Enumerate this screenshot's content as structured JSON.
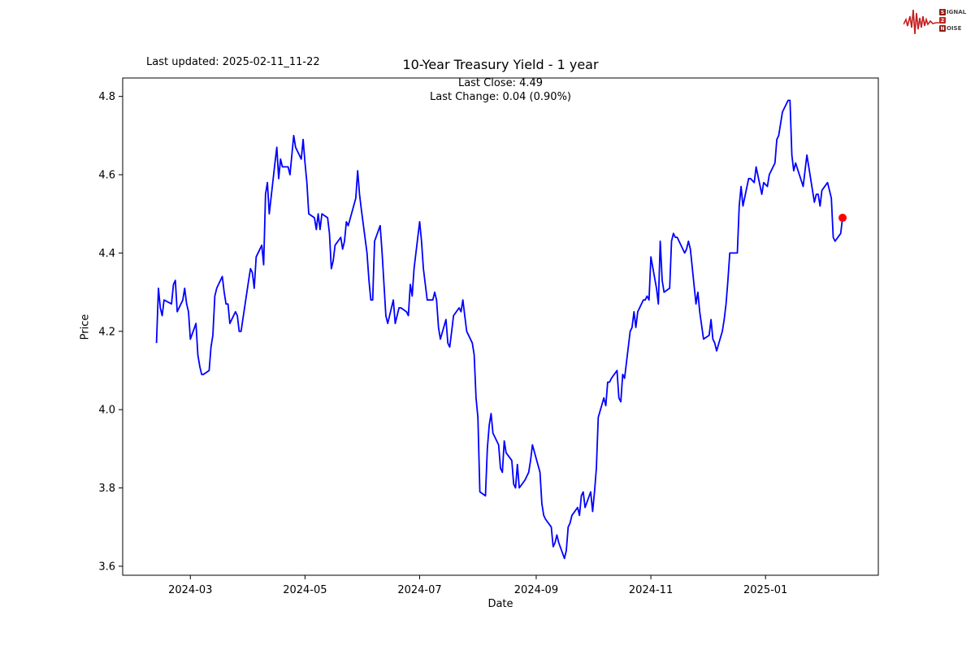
{
  "header": {
    "last_updated": "Last updated: 2025-02-11_11-22"
  },
  "logo": {
    "alt": "Signal 2 Noise",
    "line1_badge": "S",
    "line1_rest": "IGNAL",
    "line2_badge": "2",
    "line2_rest": "",
    "line3_badge": "N",
    "line3_rest": "OISE",
    "wave_color": "#c41e1e"
  },
  "chart_data": {
    "type": "line",
    "title": "10-Year Treasury Yield - 1 year",
    "subtitle_lines": [
      "Last Close: 4.49",
      "Last Change: 0.04 (0.90%)"
    ],
    "xlabel": "Date",
    "ylabel": "Price",
    "x_range": [
      "2024-01-25",
      "2025-03-02"
    ],
    "y_range": [
      3.577,
      4.847
    ],
    "x_ticks": [
      {
        "label": "2024-03",
        "date": "2024-03-01"
      },
      {
        "label": "2024-05",
        "date": "2024-05-01"
      },
      {
        "label": "2024-07",
        "date": "2024-07-01"
      },
      {
        "label": "2024-09",
        "date": "2024-09-01"
      },
      {
        "label": "2024-11",
        "date": "2024-11-01"
      },
      {
        "label": "2025-01",
        "date": "2025-01-01"
      }
    ],
    "y_ticks": [
      3.6,
      3.8,
      4.0,
      4.2,
      4.4,
      4.6,
      4.8
    ],
    "line_color": "#0000ff",
    "last_point_color": "#ff0000",
    "frame_color": "#000000",
    "legend": "none",
    "grid": false,
    "series": [
      {
        "name": "10-Year Treasury Yield",
        "points": [
          [
            "2024-02-12",
            4.17
          ],
          [
            "2024-02-13",
            4.31
          ],
          [
            "2024-02-14",
            4.26
          ],
          [
            "2024-02-15",
            4.24
          ],
          [
            "2024-02-16",
            4.28
          ],
          [
            "2024-02-20",
            4.27
          ],
          [
            "2024-02-21",
            4.32
          ],
          [
            "2024-02-22",
            4.33
          ],
          [
            "2024-02-23",
            4.25
          ],
          [
            "2024-02-26",
            4.28
          ],
          [
            "2024-02-27",
            4.31
          ],
          [
            "2024-02-28",
            4.27
          ],
          [
            "2024-02-29",
            4.25
          ],
          [
            "2024-03-01",
            4.18
          ],
          [
            "2024-03-04",
            4.22
          ],
          [
            "2024-03-05",
            4.14
          ],
          [
            "2024-03-06",
            4.11
          ],
          [
            "2024-03-07",
            4.09
          ],
          [
            "2024-03-08",
            4.09
          ],
          [
            "2024-03-11",
            4.1
          ],
          [
            "2024-03-12",
            4.16
          ],
          [
            "2024-03-13",
            4.19
          ],
          [
            "2024-03-14",
            4.29
          ],
          [
            "2024-03-15",
            4.31
          ],
          [
            "2024-03-18",
            4.34
          ],
          [
            "2024-03-19",
            4.3
          ],
          [
            "2024-03-20",
            4.27
          ],
          [
            "2024-03-21",
            4.27
          ],
          [
            "2024-03-22",
            4.22
          ],
          [
            "2024-03-25",
            4.25
          ],
          [
            "2024-03-26",
            4.24
          ],
          [
            "2024-03-27",
            4.2
          ],
          [
            "2024-03-28",
            4.2
          ],
          [
            "2024-04-01",
            4.33
          ],
          [
            "2024-04-02",
            4.36
          ],
          [
            "2024-04-03",
            4.35
          ],
          [
            "2024-04-04",
            4.31
          ],
          [
            "2024-04-05",
            4.39
          ],
          [
            "2024-04-08",
            4.42
          ],
          [
            "2024-04-09",
            4.37
          ],
          [
            "2024-04-10",
            4.55
          ],
          [
            "2024-04-11",
            4.58
          ],
          [
            "2024-04-12",
            4.5
          ],
          [
            "2024-04-15",
            4.63
          ],
          [
            "2024-04-16",
            4.67
          ],
          [
            "2024-04-17",
            4.59
          ],
          [
            "2024-04-18",
            4.64
          ],
          [
            "2024-04-19",
            4.62
          ],
          [
            "2024-04-22",
            4.62
          ],
          [
            "2024-04-23",
            4.6
          ],
          [
            "2024-04-24",
            4.65
          ],
          [
            "2024-04-25",
            4.7
          ],
          [
            "2024-04-26",
            4.67
          ],
          [
            "2024-04-29",
            4.64
          ],
          [
            "2024-04-30",
            4.69
          ],
          [
            "2024-05-01",
            4.63
          ],
          [
            "2024-05-02",
            4.58
          ],
          [
            "2024-05-03",
            4.5
          ],
          [
            "2024-05-06",
            4.49
          ],
          [
            "2024-05-07",
            4.46
          ],
          [
            "2024-05-08",
            4.5
          ],
          [
            "2024-05-09",
            4.46
          ],
          [
            "2024-05-10",
            4.5
          ],
          [
            "2024-05-13",
            4.49
          ],
          [
            "2024-05-14",
            4.45
          ],
          [
            "2024-05-15",
            4.36
          ],
          [
            "2024-05-16",
            4.38
          ],
          [
            "2024-05-17",
            4.42
          ],
          [
            "2024-05-20",
            4.44
          ],
          [
            "2024-05-21",
            4.41
          ],
          [
            "2024-05-22",
            4.43
          ],
          [
            "2024-05-23",
            4.48
          ],
          [
            "2024-05-24",
            4.47
          ],
          [
            "2024-05-28",
            4.54
          ],
          [
            "2024-05-29",
            4.61
          ],
          [
            "2024-05-30",
            4.55
          ],
          [
            "2024-05-31",
            4.51
          ],
          [
            "2024-06-03",
            4.4
          ],
          [
            "2024-06-04",
            4.33
          ],
          [
            "2024-06-05",
            4.28
          ],
          [
            "2024-06-06",
            4.28
          ],
          [
            "2024-06-07",
            4.43
          ],
          [
            "2024-06-10",
            4.47
          ],
          [
            "2024-06-11",
            4.4
          ],
          [
            "2024-06-12",
            4.32
          ],
          [
            "2024-06-13",
            4.24
          ],
          [
            "2024-06-14",
            4.22
          ],
          [
            "2024-06-17",
            4.28
          ],
          [
            "2024-06-18",
            4.22
          ],
          [
            "2024-06-20",
            4.26
          ],
          [
            "2024-06-21",
            4.26
          ],
          [
            "2024-06-24",
            4.25
          ],
          [
            "2024-06-25",
            4.24
          ],
          [
            "2024-06-26",
            4.32
          ],
          [
            "2024-06-27",
            4.29
          ],
          [
            "2024-06-28",
            4.36
          ],
          [
            "2024-07-01",
            4.48
          ],
          [
            "2024-07-02",
            4.43
          ],
          [
            "2024-07-03",
            4.36
          ],
          [
            "2024-07-05",
            4.28
          ],
          [
            "2024-07-08",
            4.28
          ],
          [
            "2024-07-09",
            4.3
          ],
          [
            "2024-07-10",
            4.28
          ],
          [
            "2024-07-11",
            4.21
          ],
          [
            "2024-07-12",
            4.18
          ],
          [
            "2024-07-15",
            4.23
          ],
          [
            "2024-07-16",
            4.17
          ],
          [
            "2024-07-17",
            4.16
          ],
          [
            "2024-07-18",
            4.2
          ],
          [
            "2024-07-19",
            4.24
          ],
          [
            "2024-07-22",
            4.26
          ],
          [
            "2024-07-23",
            4.25
          ],
          [
            "2024-07-24",
            4.28
          ],
          [
            "2024-07-25",
            4.24
          ],
          [
            "2024-07-26",
            4.2
          ],
          [
            "2024-07-29",
            4.17
          ],
          [
            "2024-07-30",
            4.14
          ],
          [
            "2024-07-31",
            4.03
          ],
          [
            "2024-08-01",
            3.98
          ],
          [
            "2024-08-02",
            3.79
          ],
          [
            "2024-08-05",
            3.78
          ],
          [
            "2024-08-06",
            3.9
          ],
          [
            "2024-08-07",
            3.96
          ],
          [
            "2024-08-08",
            3.99
          ],
          [
            "2024-08-09",
            3.94
          ],
          [
            "2024-08-12",
            3.91
          ],
          [
            "2024-08-13",
            3.85
          ],
          [
            "2024-08-14",
            3.84
          ],
          [
            "2024-08-15",
            3.92
          ],
          [
            "2024-08-16",
            3.89
          ],
          [
            "2024-08-19",
            3.87
          ],
          [
            "2024-08-20",
            3.81
          ],
          [
            "2024-08-21",
            3.8
          ],
          [
            "2024-08-22",
            3.86
          ],
          [
            "2024-08-23",
            3.8
          ],
          [
            "2024-08-26",
            3.82
          ],
          [
            "2024-08-27",
            3.83
          ],
          [
            "2024-08-28",
            3.84
          ],
          [
            "2024-08-29",
            3.87
          ],
          [
            "2024-08-30",
            3.91
          ],
          [
            "2024-09-03",
            3.84
          ],
          [
            "2024-09-04",
            3.76
          ],
          [
            "2024-09-05",
            3.73
          ],
          [
            "2024-09-06",
            3.72
          ],
          [
            "2024-09-09",
            3.7
          ],
          [
            "2024-09-10",
            3.65
          ],
          [
            "2024-09-11",
            3.66
          ],
          [
            "2024-09-12",
            3.68
          ],
          [
            "2024-09-13",
            3.66
          ],
          [
            "2024-09-16",
            3.62
          ],
          [
            "2024-09-17",
            3.64
          ],
          [
            "2024-09-18",
            3.7
          ],
          [
            "2024-09-19",
            3.71
          ],
          [
            "2024-09-20",
            3.73
          ],
          [
            "2024-09-23",
            3.75
          ],
          [
            "2024-09-24",
            3.73
          ],
          [
            "2024-09-25",
            3.78
          ],
          [
            "2024-09-26",
            3.79
          ],
          [
            "2024-09-27",
            3.75
          ],
          [
            "2024-09-30",
            3.79
          ],
          [
            "2024-10-01",
            3.74
          ],
          [
            "2024-10-02",
            3.79
          ],
          [
            "2024-10-03",
            3.85
          ],
          [
            "2024-10-04",
            3.98
          ],
          [
            "2024-10-07",
            4.03
          ],
          [
            "2024-10-08",
            4.01
          ],
          [
            "2024-10-09",
            4.07
          ],
          [
            "2024-10-10",
            4.07
          ],
          [
            "2024-10-11",
            4.08
          ],
          [
            "2024-10-14",
            4.1
          ],
          [
            "2024-10-15",
            4.03
          ],
          [
            "2024-10-16",
            4.02
          ],
          [
            "2024-10-17",
            4.09
          ],
          [
            "2024-10-18",
            4.08
          ],
          [
            "2024-10-21",
            4.2
          ],
          [
            "2024-10-22",
            4.21
          ],
          [
            "2024-10-23",
            4.25
          ],
          [
            "2024-10-24",
            4.21
          ],
          [
            "2024-10-25",
            4.25
          ],
          [
            "2024-10-28",
            4.28
          ],
          [
            "2024-10-29",
            4.28
          ],
          [
            "2024-10-30",
            4.29
          ],
          [
            "2024-10-31",
            4.28
          ],
          [
            "2024-11-01",
            4.39
          ],
          [
            "2024-11-04",
            4.31
          ],
          [
            "2024-11-05",
            4.27
          ],
          [
            "2024-11-06",
            4.43
          ],
          [
            "2024-11-07",
            4.33
          ],
          [
            "2024-11-08",
            4.3
          ],
          [
            "2024-11-11",
            4.31
          ],
          [
            "2024-11-12",
            4.43
          ],
          [
            "2024-11-13",
            4.45
          ],
          [
            "2024-11-14",
            4.44
          ],
          [
            "2024-11-15",
            4.44
          ],
          [
            "2024-11-18",
            4.41
          ],
          [
            "2024-11-19",
            4.4
          ],
          [
            "2024-11-20",
            4.41
          ],
          [
            "2024-11-21",
            4.43
          ],
          [
            "2024-11-22",
            4.41
          ],
          [
            "2024-11-25",
            4.27
          ],
          [
            "2024-11-26",
            4.3
          ],
          [
            "2024-11-27",
            4.25
          ],
          [
            "2024-11-29",
            4.18
          ],
          [
            "2024-12-02",
            4.19
          ],
          [
            "2024-12-03",
            4.23
          ],
          [
            "2024-12-04",
            4.18
          ],
          [
            "2024-12-05",
            4.17
          ],
          [
            "2024-12-06",
            4.15
          ],
          [
            "2024-12-09",
            4.2
          ],
          [
            "2024-12-10",
            4.23
          ],
          [
            "2024-12-11",
            4.27
          ],
          [
            "2024-12-12",
            4.33
          ],
          [
            "2024-12-13",
            4.4
          ],
          [
            "2024-12-16",
            4.4
          ],
          [
            "2024-12-17",
            4.4
          ],
          [
            "2024-12-18",
            4.52
          ],
          [
            "2024-12-19",
            4.57
          ],
          [
            "2024-12-20",
            4.52
          ],
          [
            "2024-12-23",
            4.59
          ],
          [
            "2024-12-24",
            4.59
          ],
          [
            "2024-12-26",
            4.58
          ],
          [
            "2024-12-27",
            4.62
          ],
          [
            "2024-12-30",
            4.55
          ],
          [
            "2024-12-31",
            4.58
          ],
          [
            "2025-01-02",
            4.57
          ],
          [
            "2025-01-03",
            4.6
          ],
          [
            "2025-01-06",
            4.63
          ],
          [
            "2025-01-07",
            4.69
          ],
          [
            "2025-01-08",
            4.7
          ],
          [
            "2025-01-10",
            4.76
          ],
          [
            "2025-01-13",
            4.79
          ],
          [
            "2025-01-14",
            4.79
          ],
          [
            "2025-01-15",
            4.65
          ],
          [
            "2025-01-16",
            4.61
          ],
          [
            "2025-01-17",
            4.63
          ],
          [
            "2025-01-21",
            4.57
          ],
          [
            "2025-01-22",
            4.61
          ],
          [
            "2025-01-23",
            4.65
          ],
          [
            "2025-01-24",
            4.62
          ],
          [
            "2025-01-27",
            4.53
          ],
          [
            "2025-01-28",
            4.55
          ],
          [
            "2025-01-29",
            4.55
          ],
          [
            "2025-01-30",
            4.52
          ],
          [
            "2025-01-31",
            4.56
          ],
          [
            "2025-02-03",
            4.58
          ],
          [
            "2025-02-04",
            4.56
          ],
          [
            "2025-02-05",
            4.54
          ],
          [
            "2025-02-06",
            4.44
          ],
          [
            "2025-02-07",
            4.43
          ],
          [
            "2025-02-10",
            4.45
          ],
          [
            "2025-02-11",
            4.49
          ]
        ]
      }
    ]
  }
}
